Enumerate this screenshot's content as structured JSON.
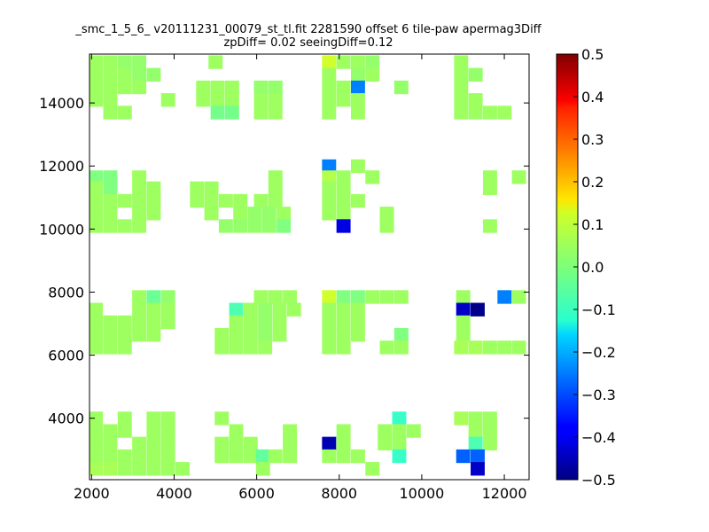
{
  "chart_data": {
    "type": "heatmap",
    "title_line1": "_smc_1_5_6_ v20111231_00079_st_tl.fit 2281590 offset 6 tile-paw apermag3Diff",
    "title_line2": "zpDiff= 0.02 seeingDiff=0.12",
    "xlim": [
      1950,
      12600
    ],
    "ylim": [
      2050,
      15550
    ],
    "x_ticks": [
      2000,
      4000,
      6000,
      8000,
      10000,
      12000
    ],
    "y_ticks": [
      4000,
      6000,
      8000,
      10000,
      12000,
      14000
    ],
    "cell_width": 333,
    "cell_height": 420,
    "colorbar": {
      "colormap": "jet",
      "vmin": -0.5,
      "vmax": 0.5,
      "ticks": [
        "0.5",
        "0.4",
        "0.3",
        "0.2",
        "0.1",
        "0.0",
        "−0.1",
        "−0.2",
        "−0.3",
        "−0.4",
        "−0.5"
      ]
    },
    "default_value": 0.03,
    "cells": [
      {
        "x": 2100,
        "y": 15300,
        "v": 0.03
      },
      {
        "x": 2450,
        "y": 15300,
        "v": 0.03
      },
      {
        "x": 2800,
        "y": 15300,
        "v": 0.02
      },
      {
        "x": 3150,
        "y": 15300,
        "v": 0.02
      },
      {
        "x": 5000,
        "y": 15300,
        "v": 0.03
      },
      {
        "x": 7750,
        "y": 15300,
        "v": 0.08
      },
      {
        "x": 8100,
        "y": 15300,
        "v": 0.03
      },
      {
        "x": 8450,
        "y": 15300,
        "v": 0.03
      },
      {
        "x": 8800,
        "y": 15300,
        "v": 0.02
      },
      {
        "x": 10950,
        "y": 15300,
        "v": 0.03
      },
      {
        "x": 2100,
        "y": 14900,
        "v": 0.03
      },
      {
        "x": 2450,
        "y": 14900,
        "v": 0.03
      },
      {
        "x": 2800,
        "y": 14900,
        "v": 0.03
      },
      {
        "x": 3150,
        "y": 14900,
        "v": 0.02
      },
      {
        "x": 3500,
        "y": 14900,
        "v": 0.02
      },
      {
        "x": 7750,
        "y": 14900,
        "v": 0.03
      },
      {
        "x": 8450,
        "y": 14900,
        "v": 0.02
      },
      {
        "x": 8800,
        "y": 14900,
        "v": 0.03
      },
      {
        "x": 10950,
        "y": 14900,
        "v": 0.03
      },
      {
        "x": 11300,
        "y": 14900,
        "v": 0.02
      },
      {
        "x": 2100,
        "y": 14500,
        "v": 0.03
      },
      {
        "x": 2450,
        "y": 14500,
        "v": 0.03
      },
      {
        "x": 2800,
        "y": 14500,
        "v": 0.03
      },
      {
        "x": 3150,
        "y": 14500,
        "v": 0.03
      },
      {
        "x": 4700,
        "y": 14500,
        "v": 0.03
      },
      {
        "x": 5050,
        "y": 14500,
        "v": 0.03
      },
      {
        "x": 5400,
        "y": 14500,
        "v": 0.03
      },
      {
        "x": 6100,
        "y": 14500,
        "v": 0.02
      },
      {
        "x": 6450,
        "y": 14500,
        "v": 0.02
      },
      {
        "x": 7750,
        "y": 14500,
        "v": 0.03
      },
      {
        "x": 8100,
        "y": 14500,
        "v": 0.03
      },
      {
        "x": 8450,
        "y": 14500,
        "v": -0.25
      },
      {
        "x": 9500,
        "y": 14500,
        "v": 0.02
      },
      {
        "x": 10950,
        "y": 14500,
        "v": 0.03
      },
      {
        "x": 2100,
        "y": 14100,
        "v": 0.03
      },
      {
        "x": 2450,
        "y": 14100,
        "v": 0.03
      },
      {
        "x": 3850,
        "y": 14100,
        "v": 0.03
      },
      {
        "x": 4700,
        "y": 14100,
        "v": 0.03
      },
      {
        "x": 5050,
        "y": 14100,
        "v": 0.03
      },
      {
        "x": 5400,
        "y": 14100,
        "v": 0.03
      },
      {
        "x": 6100,
        "y": 14100,
        "v": 0.03
      },
      {
        "x": 6450,
        "y": 14100,
        "v": 0.03
      },
      {
        "x": 7750,
        "y": 14100,
        "v": 0.03
      },
      {
        "x": 8100,
        "y": 14100,
        "v": 0.03
      },
      {
        "x": 8450,
        "y": 14100,
        "v": 0.03
      },
      {
        "x": 10950,
        "y": 14100,
        "v": 0.03
      },
      {
        "x": 11300,
        "y": 14100,
        "v": 0.03
      },
      {
        "x": 2450,
        "y": 13700,
        "v": 0.03
      },
      {
        "x": 2800,
        "y": 13700,
        "v": 0.03
      },
      {
        "x": 5050,
        "y": 13700,
        "v": -0.01
      },
      {
        "x": 5400,
        "y": 13700,
        "v": -0.01
      },
      {
        "x": 6100,
        "y": 13700,
        "v": 0.03
      },
      {
        "x": 6450,
        "y": 13700,
        "v": 0.03
      },
      {
        "x": 7750,
        "y": 13700,
        "v": 0.03
      },
      {
        "x": 8450,
        "y": 13700,
        "v": 0.03
      },
      {
        "x": 10950,
        "y": 13700,
        "v": 0.03
      },
      {
        "x": 11300,
        "y": 13700,
        "v": 0.03
      },
      {
        "x": 11650,
        "y": 13700,
        "v": 0.03
      },
      {
        "x": 12000,
        "y": 13700,
        "v": 0.03
      },
      {
        "x": 7750,
        "y": 12000,
        "v": -0.25
      },
      {
        "x": 8450,
        "y": 12000,
        "v": 0.03
      },
      {
        "x": 2100,
        "y": 11650,
        "v": 0.0
      },
      {
        "x": 2450,
        "y": 11650,
        "v": 0.0
      },
      {
        "x": 3150,
        "y": 11650,
        "v": 0.03
      },
      {
        "x": 6450,
        "y": 11650,
        "v": 0.03
      },
      {
        "x": 7750,
        "y": 11650,
        "v": 0.05
      },
      {
        "x": 8100,
        "y": 11650,
        "v": 0.03
      },
      {
        "x": 8800,
        "y": 11650,
        "v": 0.03
      },
      {
        "x": 11650,
        "y": 11650,
        "v": 0.03
      },
      {
        "x": 12350,
        "y": 11650,
        "v": 0.03
      },
      {
        "x": 2100,
        "y": 11300,
        "v": 0.03
      },
      {
        "x": 2450,
        "y": 11300,
        "v": 0.0
      },
      {
        "x": 3150,
        "y": 11300,
        "v": 0.03
      },
      {
        "x": 3500,
        "y": 11300,
        "v": 0.03
      },
      {
        "x": 4550,
        "y": 11300,
        "v": 0.03
      },
      {
        "x": 4900,
        "y": 11300,
        "v": 0.03
      },
      {
        "x": 6450,
        "y": 11300,
        "v": 0.03
      },
      {
        "x": 7750,
        "y": 11300,
        "v": 0.03
      },
      {
        "x": 8100,
        "y": 11300,
        "v": 0.03
      },
      {
        "x": 11650,
        "y": 11300,
        "v": 0.03
      },
      {
        "x": 2100,
        "y": 10900,
        "v": 0.03
      },
      {
        "x": 2450,
        "y": 10900,
        "v": 0.03
      },
      {
        "x": 2800,
        "y": 10900,
        "v": 0.03
      },
      {
        "x": 3150,
        "y": 10900,
        "v": 0.03
      },
      {
        "x": 3500,
        "y": 10900,
        "v": 0.03
      },
      {
        "x": 4550,
        "y": 10900,
        "v": 0.03
      },
      {
        "x": 4900,
        "y": 10900,
        "v": 0.03
      },
      {
        "x": 5250,
        "y": 10900,
        "v": 0.03
      },
      {
        "x": 5600,
        "y": 10900,
        "v": 0.03
      },
      {
        "x": 6100,
        "y": 10900,
        "v": 0.03
      },
      {
        "x": 6450,
        "y": 10900,
        "v": 0.03
      },
      {
        "x": 7750,
        "y": 10900,
        "v": 0.03
      },
      {
        "x": 8100,
        "y": 10900,
        "v": 0.03
      },
      {
        "x": 8450,
        "y": 10900,
        "v": 0.03
      },
      {
        "x": 2100,
        "y": 10500,
        "v": 0.03
      },
      {
        "x": 2450,
        "y": 10500,
        "v": 0.03
      },
      {
        "x": 3150,
        "y": 10500,
        "v": 0.03
      },
      {
        "x": 3500,
        "y": 10500,
        "v": 0.03
      },
      {
        "x": 4900,
        "y": 10500,
        "v": 0.03
      },
      {
        "x": 5600,
        "y": 10500,
        "v": 0.03
      },
      {
        "x": 5950,
        "y": 10500,
        "v": 0.02
      },
      {
        "x": 6300,
        "y": 10500,
        "v": 0.02
      },
      {
        "x": 6650,
        "y": 10500,
        "v": 0.03
      },
      {
        "x": 7750,
        "y": 10500,
        "v": 0.03
      },
      {
        "x": 8100,
        "y": 10500,
        "v": 0.03
      },
      {
        "x": 9150,
        "y": 10500,
        "v": 0.03
      },
      {
        "x": 2100,
        "y": 10100,
        "v": 0.03
      },
      {
        "x": 2450,
        "y": 10100,
        "v": 0.03
      },
      {
        "x": 2800,
        "y": 10100,
        "v": 0.03
      },
      {
        "x": 3150,
        "y": 10100,
        "v": 0.03
      },
      {
        "x": 5250,
        "y": 10100,
        "v": 0.02
      },
      {
        "x": 5600,
        "y": 10100,
        "v": 0.02
      },
      {
        "x": 5950,
        "y": 10100,
        "v": 0.02
      },
      {
        "x": 6300,
        "y": 10100,
        "v": 0.02
      },
      {
        "x": 6650,
        "y": 10100,
        "v": 0.0
      },
      {
        "x": 8100,
        "y": 10100,
        "v": -0.4
      },
      {
        "x": 9150,
        "y": 10100,
        "v": 0.03
      },
      {
        "x": 11650,
        "y": 10100,
        "v": 0.03
      },
      {
        "x": 3150,
        "y": 7850,
        "v": 0.03
      },
      {
        "x": 3500,
        "y": 7850,
        "v": -0.02
      },
      {
        "x": 3850,
        "y": 7850,
        "v": 0.02
      },
      {
        "x": 6100,
        "y": 7850,
        "v": 0.03
      },
      {
        "x": 6450,
        "y": 7850,
        "v": 0.03
      },
      {
        "x": 6800,
        "y": 7850,
        "v": 0.03
      },
      {
        "x": 7750,
        "y": 7850,
        "v": 0.08
      },
      {
        "x": 8100,
        "y": 7850,
        "v": 0.0
      },
      {
        "x": 8450,
        "y": 7850,
        "v": 0.0
      },
      {
        "x": 8800,
        "y": 7850,
        "v": 0.03
      },
      {
        "x": 9150,
        "y": 7850,
        "v": 0.03
      },
      {
        "x": 9500,
        "y": 7850,
        "v": 0.03
      },
      {
        "x": 11000,
        "y": 7850,
        "v": 0.03
      },
      {
        "x": 12000,
        "y": 7850,
        "v": -0.25
      },
      {
        "x": 12350,
        "y": 7850,
        "v": 0.03
      },
      {
        "x": 2100,
        "y": 7450,
        "v": 0.03
      },
      {
        "x": 3150,
        "y": 7450,
        "v": 0.03
      },
      {
        "x": 3500,
        "y": 7450,
        "v": 0.03
      },
      {
        "x": 3850,
        "y": 7450,
        "v": 0.03
      },
      {
        "x": 5500,
        "y": 7450,
        "v": -0.05
      },
      {
        "x": 5850,
        "y": 7450,
        "v": 0.03
      },
      {
        "x": 6200,
        "y": 7450,
        "v": 0.02
      },
      {
        "x": 6550,
        "y": 7450,
        "v": 0.03
      },
      {
        "x": 6900,
        "y": 7450,
        "v": 0.03
      },
      {
        "x": 7750,
        "y": 7450,
        "v": 0.03
      },
      {
        "x": 8100,
        "y": 7450,
        "v": 0.03
      },
      {
        "x": 8450,
        "y": 7450,
        "v": 0.03
      },
      {
        "x": 11000,
        "y": 7450,
        "v": -0.43
      },
      {
        "x": 11350,
        "y": 7450,
        "v": -0.49
      },
      {
        "x": 2100,
        "y": 7050,
        "v": 0.03
      },
      {
        "x": 2450,
        "y": 7050,
        "v": 0.03
      },
      {
        "x": 2800,
        "y": 7050,
        "v": 0.03
      },
      {
        "x": 3150,
        "y": 7050,
        "v": 0.03
      },
      {
        "x": 3500,
        "y": 7050,
        "v": 0.03
      },
      {
        "x": 3850,
        "y": 7050,
        "v": 0.03
      },
      {
        "x": 5500,
        "y": 7050,
        "v": 0.03
      },
      {
        "x": 5850,
        "y": 7050,
        "v": 0.03
      },
      {
        "x": 6200,
        "y": 7050,
        "v": 0.02
      },
      {
        "x": 6550,
        "y": 7050,
        "v": 0.03
      },
      {
        "x": 7750,
        "y": 7050,
        "v": 0.03
      },
      {
        "x": 8100,
        "y": 7050,
        "v": 0.03
      },
      {
        "x": 8450,
        "y": 7050,
        "v": 0.03
      },
      {
        "x": 11000,
        "y": 7050,
        "v": 0.03
      },
      {
        "x": 2100,
        "y": 6650,
        "v": 0.03
      },
      {
        "x": 2450,
        "y": 6650,
        "v": 0.03
      },
      {
        "x": 2800,
        "y": 6650,
        "v": 0.03
      },
      {
        "x": 3150,
        "y": 6650,
        "v": 0.03
      },
      {
        "x": 3500,
        "y": 6650,
        "v": 0.03
      },
      {
        "x": 5150,
        "y": 6650,
        "v": 0.03
      },
      {
        "x": 5500,
        "y": 6650,
        "v": 0.03
      },
      {
        "x": 5850,
        "y": 6650,
        "v": 0.03
      },
      {
        "x": 6200,
        "y": 6650,
        "v": 0.02
      },
      {
        "x": 6550,
        "y": 6650,
        "v": 0.03
      },
      {
        "x": 7750,
        "y": 6650,
        "v": 0.03
      },
      {
        "x": 8100,
        "y": 6650,
        "v": 0.03
      },
      {
        "x": 8450,
        "y": 6650,
        "v": 0.03
      },
      {
        "x": 9500,
        "y": 6650,
        "v": 0.0
      },
      {
        "x": 11000,
        "y": 6650,
        "v": 0.03
      },
      {
        "x": 2100,
        "y": 6250,
        "v": 0.03
      },
      {
        "x": 2450,
        "y": 6250,
        "v": 0.03
      },
      {
        "x": 2800,
        "y": 6250,
        "v": 0.03
      },
      {
        "x": 5150,
        "y": 6250,
        "v": 0.03
      },
      {
        "x": 5500,
        "y": 6250,
        "v": 0.03
      },
      {
        "x": 5850,
        "y": 6250,
        "v": 0.03
      },
      {
        "x": 6200,
        "y": 6250,
        "v": 0.03
      },
      {
        "x": 7750,
        "y": 6250,
        "v": 0.03
      },
      {
        "x": 8100,
        "y": 6250,
        "v": 0.03
      },
      {
        "x": 9150,
        "y": 6250,
        "v": 0.03
      },
      {
        "x": 9500,
        "y": 6250,
        "v": 0.03
      },
      {
        "x": 10950,
        "y": 6250,
        "v": 0.04
      },
      {
        "x": 11300,
        "y": 6250,
        "v": 0.04
      },
      {
        "x": 11650,
        "y": 6250,
        "v": 0.03
      },
      {
        "x": 12000,
        "y": 6250,
        "v": 0.03
      },
      {
        "x": 12350,
        "y": 6250,
        "v": 0.03
      },
      {
        "x": 2100,
        "y": 4000,
        "v": 0.03
      },
      {
        "x": 2800,
        "y": 4000,
        "v": 0.03
      },
      {
        "x": 3500,
        "y": 4000,
        "v": 0.03
      },
      {
        "x": 3850,
        "y": 4000,
        "v": 0.03
      },
      {
        "x": 5150,
        "y": 4000,
        "v": 0.03
      },
      {
        "x": 9450,
        "y": 4000,
        "v": -0.07
      },
      {
        "x": 10950,
        "y": 4000,
        "v": 0.04
      },
      {
        "x": 11300,
        "y": 4000,
        "v": 0.03
      },
      {
        "x": 11650,
        "y": 4000,
        "v": 0.03
      },
      {
        "x": 2100,
        "y": 3600,
        "v": 0.03
      },
      {
        "x": 2450,
        "y": 3600,
        "v": 0.03
      },
      {
        "x": 2800,
        "y": 3600,
        "v": 0.03
      },
      {
        "x": 3500,
        "y": 3600,
        "v": 0.03
      },
      {
        "x": 3850,
        "y": 3600,
        "v": 0.03
      },
      {
        "x": 5500,
        "y": 3600,
        "v": 0.03
      },
      {
        "x": 6800,
        "y": 3600,
        "v": 0.03
      },
      {
        "x": 8100,
        "y": 3600,
        "v": 0.03
      },
      {
        "x": 9100,
        "y": 3600,
        "v": 0.03
      },
      {
        "x": 9450,
        "y": 3600,
        "v": 0.03
      },
      {
        "x": 9800,
        "y": 3600,
        "v": 0.03
      },
      {
        "x": 11300,
        "y": 3600,
        "v": 0.03
      },
      {
        "x": 11650,
        "y": 3600,
        "v": 0.03
      },
      {
        "x": 2100,
        "y": 3200,
        "v": 0.03
      },
      {
        "x": 2450,
        "y": 3200,
        "v": 0.03
      },
      {
        "x": 3150,
        "y": 3200,
        "v": 0.03
      },
      {
        "x": 3500,
        "y": 3200,
        "v": 0.03
      },
      {
        "x": 3850,
        "y": 3200,
        "v": 0.03
      },
      {
        "x": 5150,
        "y": 3200,
        "v": 0.03
      },
      {
        "x": 5500,
        "y": 3200,
        "v": 0.03
      },
      {
        "x": 5850,
        "y": 3200,
        "v": 0.03
      },
      {
        "x": 6800,
        "y": 3200,
        "v": 0.03
      },
      {
        "x": 7750,
        "y": 3200,
        "v": -0.45
      },
      {
        "x": 8100,
        "y": 3200,
        "v": 0.03
      },
      {
        "x": 9100,
        "y": 3200,
        "v": 0.03
      },
      {
        "x": 9450,
        "y": 3200,
        "v": 0.03
      },
      {
        "x": 11300,
        "y": 3200,
        "v": -0.05
      },
      {
        "x": 11650,
        "y": 3200,
        "v": 0.03
      },
      {
        "x": 2100,
        "y": 2800,
        "v": 0.03
      },
      {
        "x": 2450,
        "y": 2800,
        "v": 0.03
      },
      {
        "x": 2800,
        "y": 2800,
        "v": 0.03
      },
      {
        "x": 3150,
        "y": 2800,
        "v": 0.03
      },
      {
        "x": 3500,
        "y": 2800,
        "v": 0.03
      },
      {
        "x": 3850,
        "y": 2800,
        "v": 0.03
      },
      {
        "x": 5150,
        "y": 2800,
        "v": 0.03
      },
      {
        "x": 5500,
        "y": 2800,
        "v": 0.03
      },
      {
        "x": 5850,
        "y": 2800,
        "v": 0.03
      },
      {
        "x": 6150,
        "y": 2800,
        "v": -0.03
      },
      {
        "x": 6450,
        "y": 2800,
        "v": 0.03
      },
      {
        "x": 6800,
        "y": 2800,
        "v": 0.03
      },
      {
        "x": 7750,
        "y": 2800,
        "v": 0.03
      },
      {
        "x": 8100,
        "y": 2800,
        "v": 0.03
      },
      {
        "x": 8450,
        "y": 2800,
        "v": 0.03
      },
      {
        "x": 9450,
        "y": 2800,
        "v": -0.07
      },
      {
        "x": 11000,
        "y": 2800,
        "v": -0.28
      },
      {
        "x": 11350,
        "y": 2800,
        "v": -0.28
      },
      {
        "x": 2100,
        "y": 2400,
        "v": 0.04
      },
      {
        "x": 2450,
        "y": 2400,
        "v": 0.04
      },
      {
        "x": 2800,
        "y": 2400,
        "v": 0.03
      },
      {
        "x": 3150,
        "y": 2400,
        "v": 0.03
      },
      {
        "x": 3500,
        "y": 2400,
        "v": 0.03
      },
      {
        "x": 3850,
        "y": 2400,
        "v": 0.03
      },
      {
        "x": 4200,
        "y": 2400,
        "v": 0.03
      },
      {
        "x": 6150,
        "y": 2400,
        "v": 0.03
      },
      {
        "x": 8800,
        "y": 2400,
        "v": 0.03
      },
      {
        "x": 11350,
        "y": 2400,
        "v": -0.43
      }
    ]
  }
}
